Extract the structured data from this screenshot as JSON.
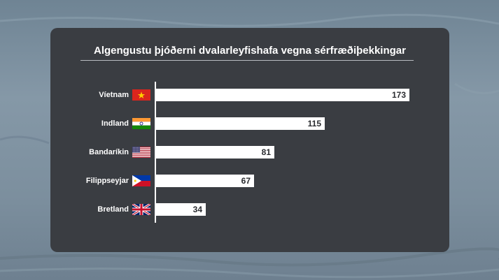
{
  "chart_data": {
    "type": "bar",
    "orientation": "horizontal",
    "title": "Algengustu þjóðerni dvalarleyfishafa vegna sérfræðiþekkingar",
    "categories": [
      "Víetnam",
      "Indland",
      "Bandaríkin",
      "Filippseyjar",
      "Bretland"
    ],
    "values": [
      173,
      115,
      81,
      67,
      34
    ],
    "flags": [
      "vietnam-flag-icon",
      "india-flag-icon",
      "usa-flag-icon",
      "philippines-flag-icon",
      "uk-flag-icon"
    ],
    "xlim": [
      0,
      173
    ],
    "grid": false,
    "legend": "none"
  },
  "colors": {
    "panel": "#3a3d42",
    "bar": "#ffffff",
    "text": "#ffffff",
    "value_text": "#2a2c30"
  }
}
